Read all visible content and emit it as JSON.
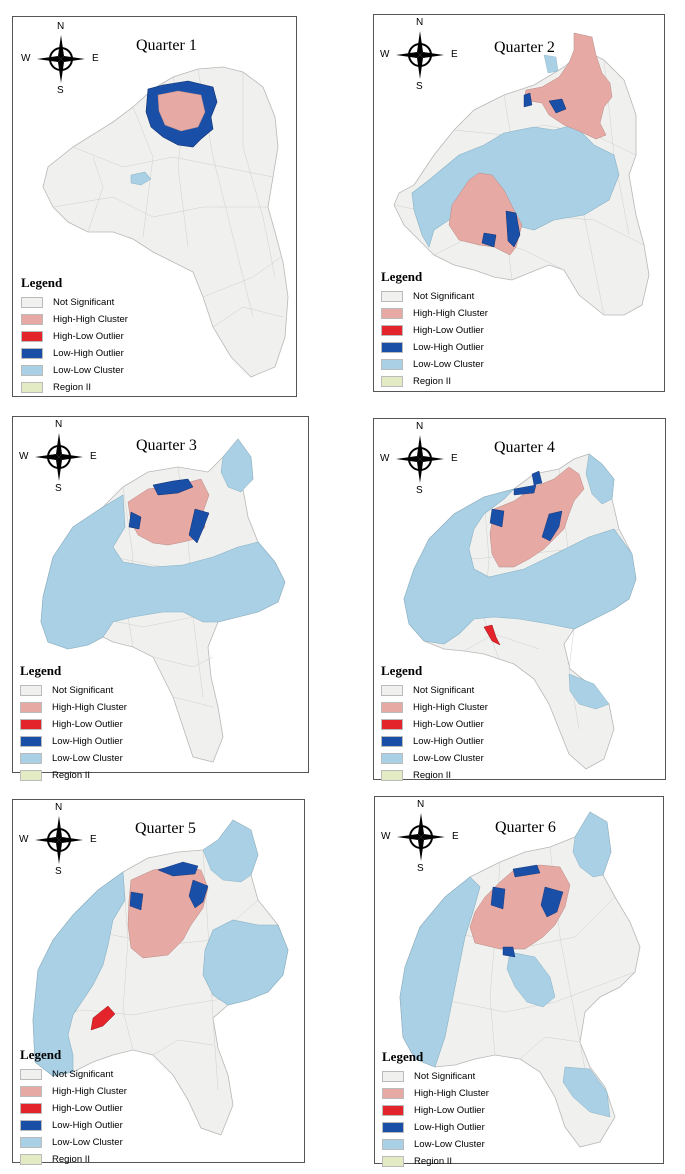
{
  "compass": {
    "n": "N",
    "s": "S",
    "e": "E",
    "w": "W"
  },
  "legend": {
    "title": "Legend",
    "items": [
      {
        "label": "Not Significant",
        "color": "#f0f0ee"
      },
      {
        "label": "High-High Cluster",
        "color": "#e6a9a3"
      },
      {
        "label": "High-Low Outlier",
        "color": "#e3242b"
      },
      {
        "label": "Low-High Outlier",
        "color": "#1a4fa8"
      },
      {
        "label": "Low-Low Cluster",
        "color": "#a9d0e4"
      },
      {
        "label": "Region II",
        "color": "#e3ebc4"
      }
    ]
  },
  "panels": [
    {
      "title": "Quarter 1"
    },
    {
      "title": "Quarter 2"
    },
    {
      "title": "Quarter 3"
    },
    {
      "title": "Quarter 4"
    },
    {
      "title": "Quarter 5"
    },
    {
      "title": "Quarter 6"
    }
  ]
}
